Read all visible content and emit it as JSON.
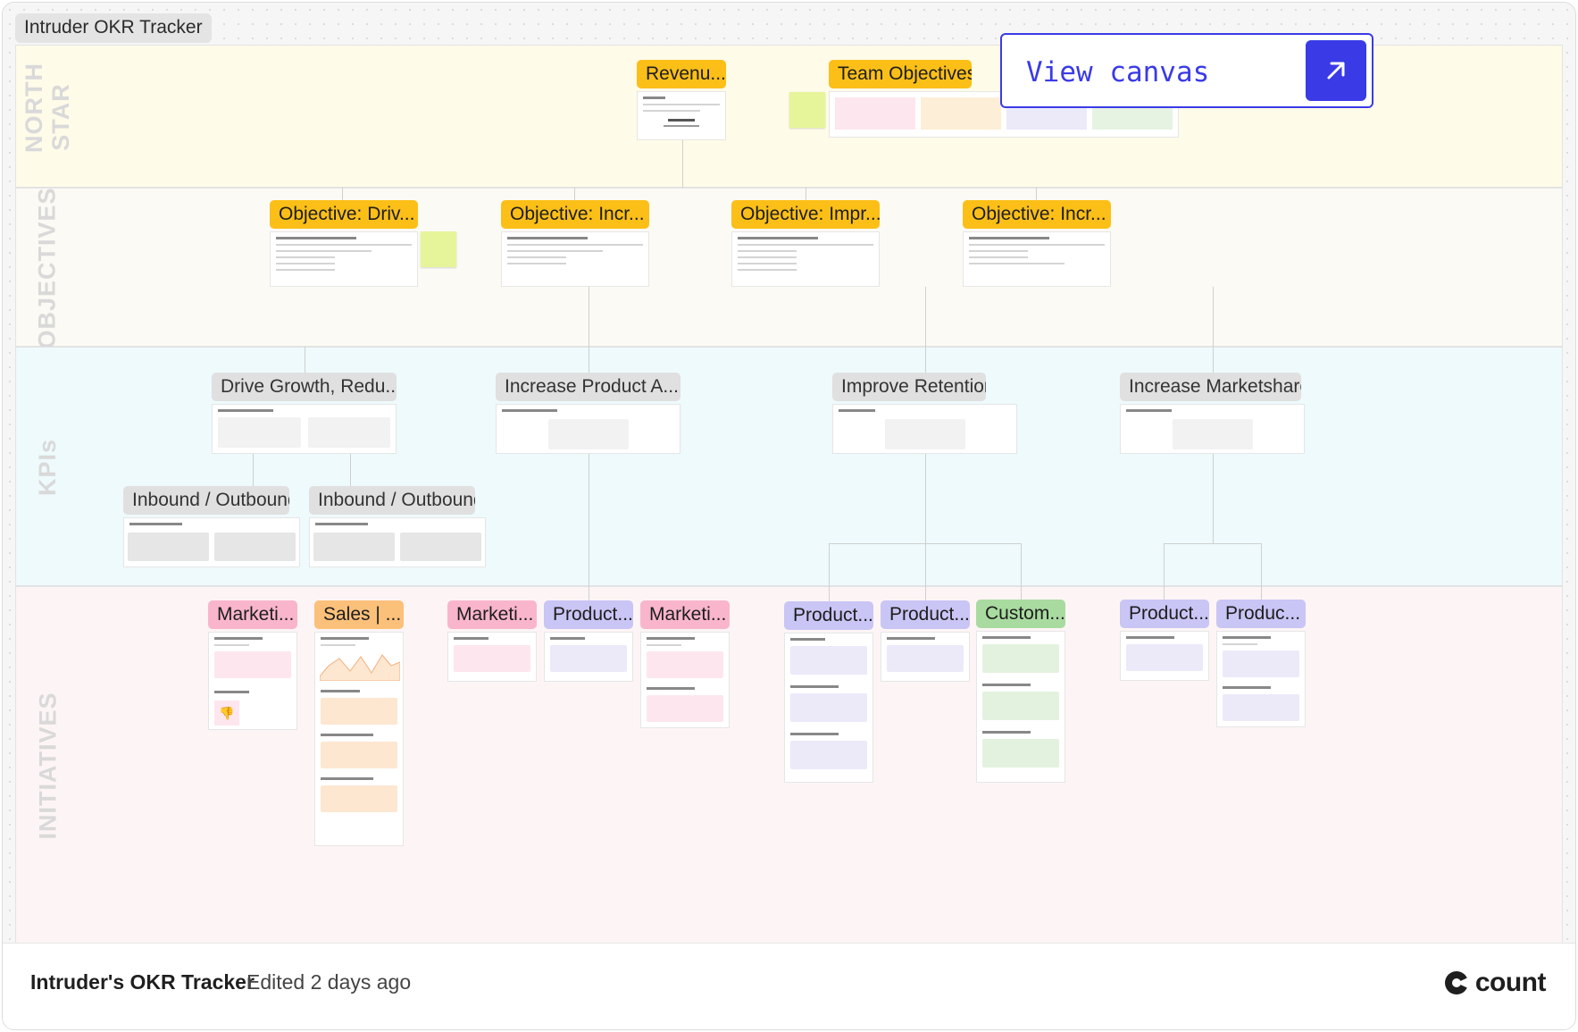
{
  "canvas": {
    "title": "Intruder OKR Tracker"
  },
  "bands": {
    "north_star": "NORTH STAR",
    "objectives": "OBJECTIVES",
    "kpis": "KPIs",
    "initiatives": "INITIATIVES"
  },
  "north_star": {
    "revenue_tag": "Revenu...",
    "team_objectives_tag": "Team Objectives"
  },
  "objectives": [
    {
      "label": "Objective: Driv..."
    },
    {
      "label": "Objective: Incr..."
    },
    {
      "label": "Objective: Impr..."
    },
    {
      "label": "Objective: Incr..."
    }
  ],
  "kpis": [
    {
      "label": "Drive Growth, Redu..."
    },
    {
      "label": "Increase Product A..."
    },
    {
      "label": "Improve Retention"
    },
    {
      "label": "Increase Marketshare"
    }
  ],
  "kpi_sub": [
    {
      "label": "Inbound / Outbound"
    },
    {
      "label": "Inbound / Outbound"
    }
  ],
  "initiatives": [
    {
      "label": "Marketi...",
      "color": "pink"
    },
    {
      "label": "Sales | ...",
      "color": "orange"
    },
    {
      "label": "Marketi...",
      "color": "pink"
    },
    {
      "label": "Product...",
      "color": "purple"
    },
    {
      "label": "Marketi...",
      "color": "pink"
    },
    {
      "label": "Product...",
      "color": "purple"
    },
    {
      "label": "Product...",
      "color": "purple"
    },
    {
      "label": "Custom...",
      "color": "green"
    },
    {
      "label": "Product...",
      "color": "purple"
    },
    {
      "label": "Produc...",
      "color": "purple"
    }
  ],
  "view_canvas": {
    "label": "View canvas",
    "icon": "arrow-up-right-icon"
  },
  "footer": {
    "title": "Intruder's OKR Tracker",
    "edited": "Edited 2 days ago",
    "logo_text": "count"
  },
  "colors": {
    "accent": "#3a3be6",
    "yellow_tag": "#fbbf18",
    "north_star_band": "#fefbe8",
    "kpi_band": "#eefafc",
    "initiatives_band": "#fdf5f5"
  }
}
